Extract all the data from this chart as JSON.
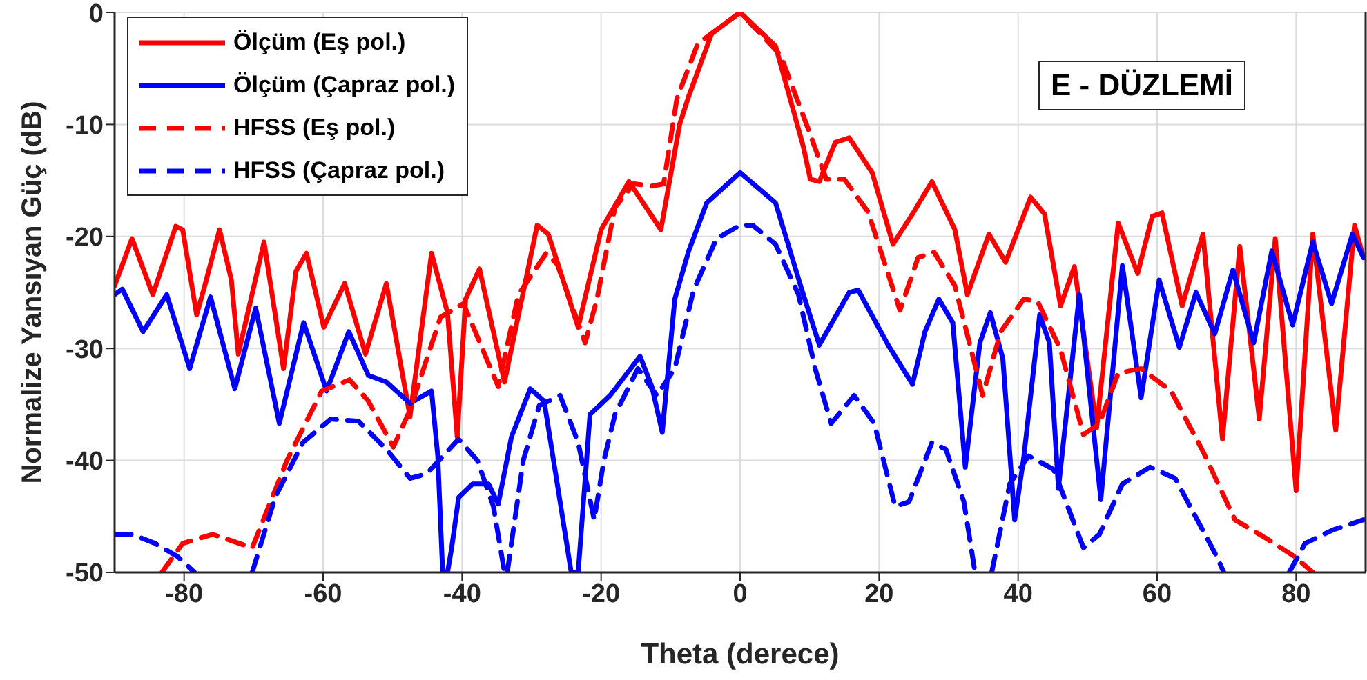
{
  "chart_data": {
    "type": "line",
    "xlabel": "Theta (derece)",
    "ylabel": "Normalize Yansıyan Güç (dB)",
    "annotations": [
      "E - DÜZLEMİ"
    ],
    "xlim": [
      -90,
      90
    ],
    "xticks": [
      -80,
      -60,
      -40,
      -20,
      0,
      20,
      40,
      60,
      80
    ],
    "ylim": [
      -50,
      0
    ],
    "yticks": [
      -50,
      -40,
      -30,
      -20,
      -10,
      0
    ],
    "grid": true,
    "legend": "top left",
    "marker": "none",
    "series": [
      {
        "name": "Ölçüm (Eş pol.)",
        "color": "#ff0000",
        "line_style": "solid",
        "x": [
          -90,
          -87.5,
          -84.5,
          -81.2,
          -80.2,
          -78.2,
          -77.2,
          -74.9,
          -73.2,
          -72.2,
          -68.5,
          -65.7,
          -63.9,
          -62.4,
          -59.9,
          -56.9,
          -53.9,
          -50.9,
          -47.5,
          -44.4,
          -42.1,
          -40.7,
          -39.5,
          -37.5,
          -33.9,
          -29.2,
          -27.6,
          -23.3,
          -20,
          -16,
          -11.4,
          -8.7,
          -7.4,
          -4.1,
          0,
          5.1,
          9.1,
          10.1,
          11.4,
          13.7,
          15.7,
          19,
          22,
          25,
          27.6,
          30.9,
          32.7,
          35.8,
          38.2,
          41.8,
          43.8,
          46.1,
          48.1,
          51.3,
          54.4,
          57.2,
          59.3,
          60.7,
          63.6,
          66.6,
          69.4,
          71.9,
          74.7,
          77,
          80,
          82.4,
          85.7,
          88.4,
          89.7
        ],
        "values": [
          -24.4,
          -20.2,
          -25.2,
          -19.1,
          -19.4,
          -27,
          -24.8,
          -19.4,
          -23.9,
          -30.5,
          -20.5,
          -31.8,
          -23.1,
          -21.5,
          -28.1,
          -24.2,
          -30.5,
          -24.2,
          -36.1,
          -21.5,
          -26.8,
          -37.9,
          -25.6,
          -22.9,
          -33,
          -19,
          -19.8,
          -28.1,
          -19.4,
          -15.1,
          -19.4,
          -10,
          -7.5,
          -1.9,
          0,
          -3,
          -12,
          -14.9,
          -15.1,
          -11.6,
          -11.2,
          -14.3,
          -20.7,
          -17.8,
          -15.1,
          -19.4,
          -25.2,
          -19.8,
          -22.3,
          -16.5,
          -18,
          -26.2,
          -22.7,
          -37.1,
          -18.8,
          -23.3,
          -18.2,
          -17.9,
          -26.2,
          -19.8,
          -38.1,
          -20.9,
          -36.3,
          -20.2,
          -42.7,
          -19.8,
          -37.3,
          -19,
          -21.9
        ]
      },
      {
        "name": "Ölçüm (Çapraz pol.)",
        "color": "#0000ff",
        "line_style": "solid",
        "x": [
          -90,
          -88.9,
          -85.9,
          -82.5,
          -79.2,
          -76.2,
          -72.7,
          -69.7,
          -66.3,
          -62.8,
          -59.5,
          -56.3,
          -53.5,
          -50.9,
          -47.5,
          -44.4,
          -43.5,
          -42.8,
          -42.1,
          -41.5,
          -40.5,
          -38.5,
          -36.2,
          -34.8,
          -32.9,
          -30.2,
          -28.2,
          -25.9,
          -24.3,
          -23.3,
          -21.6,
          -18.7,
          -14.4,
          -12.7,
          -11.2,
          -9.4,
          -7.4,
          -4.8,
          0,
          5.1,
          8.8,
          11.4,
          15.7,
          17,
          21.3,
          24.8,
          26.6,
          28.6,
          30.6,
          32.4,
          34.5,
          36,
          37.8,
          39.5,
          40.8,
          43.1,
          44.5,
          45.8,
          48.8,
          51.9,
          55,
          57.7,
          60.3,
          63.2,
          65.6,
          68.3,
          70.9,
          73.9,
          76.5,
          79.5,
          82.4,
          85.1,
          88.1,
          89.7
        ],
        "values": [
          -25.2,
          -24.7,
          -28.5,
          -25.2,
          -31.8,
          -25.4,
          -33.6,
          -26.4,
          -36.7,
          -27.7,
          -33.8,
          -28.5,
          -32.4,
          -33,
          -34.9,
          -33.8,
          -39.6,
          -50,
          -50,
          -47.8,
          -43.3,
          -42.1,
          -42.1,
          -43.9,
          -37.9,
          -33.6,
          -34.7,
          -43.7,
          -50,
          -50,
          -35.9,
          -34.2,
          -30.7,
          -33.4,
          -37.5,
          -25.6,
          -21.3,
          -17,
          -14.3,
          -17,
          -24.6,
          -29.7,
          -25,
          -24.8,
          -29.7,
          -33.2,
          -28.5,
          -25.6,
          -27.7,
          -40.6,
          -29.5,
          -26.8,
          -30.9,
          -45.3,
          -39.8,
          -27,
          -29.5,
          -42.5,
          -25.2,
          -43.5,
          -22.6,
          -34.4,
          -23.9,
          -29.9,
          -25,
          -28.7,
          -23,
          -29.5,
          -21.3,
          -27.9,
          -20.5,
          -26,
          -19.8,
          -21.9
        ]
      },
      {
        "name": "HFSS (Eş pol.)",
        "color": "#ff0000",
        "line_style": "dashed",
        "x": [
          -83.2,
          -80.2,
          -75.9,
          -70.2,
          -65.2,
          -60.2,
          -56.2,
          -53.5,
          -49.9,
          -47.5,
          -43.1,
          -39.8,
          -36.5,
          -34.8,
          -31.9,
          -27.9,
          -26.3,
          -22.3,
          -20.6,
          -18,
          -15.3,
          -12.7,
          -11,
          -9.1,
          -6.1,
          0,
          5.8,
          9.8,
          12.4,
          15,
          18.4,
          23,
          25.6,
          27.9,
          30.9,
          34.9,
          37.5,
          40.8,
          42.8,
          46.1,
          49.4,
          51.7,
          54.4,
          57.7,
          62,
          66.6,
          71.2,
          75.8,
          79.8,
          82.4
        ],
        "values": [
          -50,
          -47.4,
          -46.6,
          -47.8,
          -40,
          -33.8,
          -32.8,
          -34.7,
          -38.8,
          -35.5,
          -27.2,
          -26,
          -30.9,
          -33.4,
          -25.2,
          -21.5,
          -22.5,
          -29.5,
          -25.6,
          -17.4,
          -15.3,
          -15.5,
          -15.3,
          -7.7,
          -2.8,
          0,
          -3.8,
          -10.4,
          -14.9,
          -14.9,
          -17.8,
          -26.6,
          -21.9,
          -21.4,
          -24.4,
          -34.2,
          -28.5,
          -25.6,
          -25.8,
          -30.1,
          -37.7,
          -36.7,
          -32.2,
          -31.8,
          -33.8,
          -39.2,
          -45.3,
          -47,
          -48.6,
          -50
        ]
      },
      {
        "name": "HFSS (Çapraz pol.)",
        "color": "#0000ff",
        "line_style": "dashed",
        "x": [
          -90,
          -87.5,
          -84.2,
          -80.9,
          -78.5,
          -74,
          -70.2,
          -66.9,
          -62.9,
          -58.9,
          -54.9,
          -50.9,
          -47.5,
          -45.1,
          -40.5,
          -37.8,
          -35.5,
          -33.9,
          -33.7,
          -33.5,
          -31.2,
          -28.9,
          -25.9,
          -23.3,
          -21,
          -19.6,
          -18,
          -14.7,
          -12,
          -9.4,
          -6.7,
          -3.4,
          0,
          1.8,
          5.1,
          8.4,
          10.8,
          13.1,
          16.4,
          19.3,
          22.3,
          24.3,
          27.6,
          29.6,
          32.2,
          33.8,
          35,
          36.2,
          38.8,
          41.5,
          45.1,
          49.4,
          51.7,
          55,
          59,
          62.6,
          68.6,
          69.6,
          74,
          79,
          81.3,
          85.3,
          89.7
        ],
        "values": [
          -46.6,
          -46.6,
          -47.4,
          -48.6,
          -50,
          null,
          -50,
          -43.3,
          -38.4,
          -36.3,
          -36.5,
          -39,
          -41.6,
          -41.2,
          -38.1,
          -40,
          -44.1,
          -50,
          null,
          -50,
          -40,
          -35.1,
          -34.2,
          -38.4,
          -45.3,
          -40,
          -35.9,
          -31.8,
          -34.2,
          -31.8,
          -24.8,
          -20.2,
          -19,
          -19,
          -20.7,
          -25.2,
          -31.8,
          -36.7,
          -34.2,
          -36.7,
          -44.1,
          -43.7,
          -38.4,
          -39,
          -43.7,
          -50,
          null,
          -50,
          -42.1,
          -39.6,
          -40.8,
          -47.8,
          -46.6,
          -42.1,
          -40.6,
          -41.6,
          -48.6,
          -50,
          null,
          -50,
          -47.4,
          -46.2,
          -45.3
        ]
      }
    ]
  }
}
